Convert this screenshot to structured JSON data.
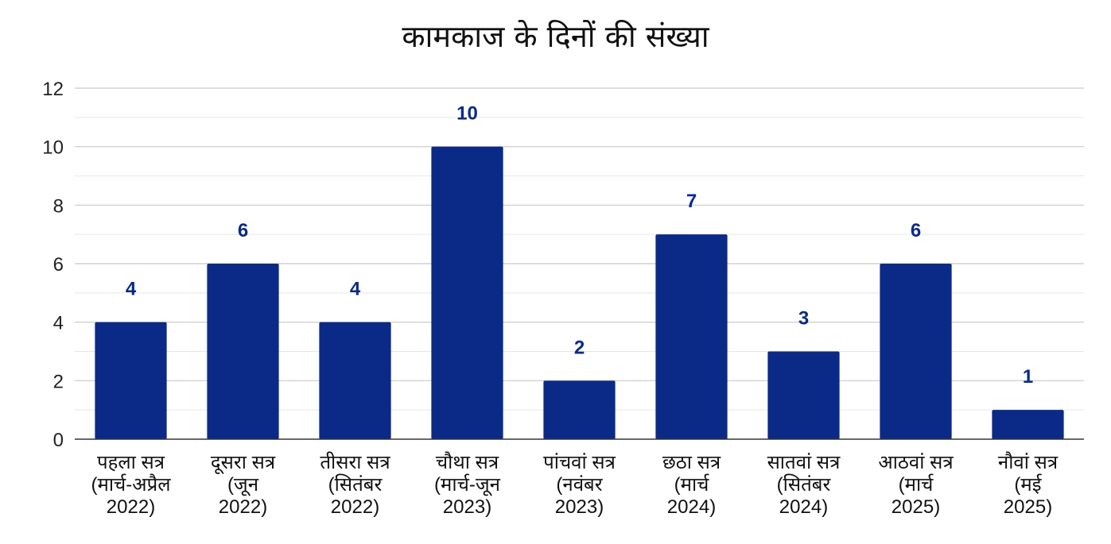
{
  "chart_data": {
    "type": "bar",
    "title": "कामकाज के दिनों की संख्या",
    "xlabel": "",
    "ylabel": "",
    "ylim": [
      0,
      12
    ],
    "yticks": [
      0,
      2,
      4,
      6,
      8,
      10,
      12
    ],
    "grid": true,
    "minor_grid": true,
    "legend": "none",
    "bar_color": "#0b2a87",
    "label_color": "#0b2a87",
    "categories": [
      [
        "पहला सत्र",
        "(मार्च-अप्रैल",
        "2022)"
      ],
      [
        "दूसरा सत्र",
        "(जून",
        "2022)"
      ],
      [
        "तीसरा सत्र",
        "(सितंबर",
        "2022)"
      ],
      [
        "चौथा सत्र",
        "(मार्च-जून",
        "2023)"
      ],
      [
        "पांचवां सत्र",
        "(नवंबर",
        "2023)"
      ],
      [
        "छठा सत्र",
        "(मार्च",
        "2024)"
      ],
      [
        "सातवां सत्र",
        "(सितंबर",
        "2024)"
      ],
      [
        "आठवां सत्र",
        "(मार्च",
        "2025)"
      ],
      [
        "नौवां सत्र",
        "(मई",
        "2025)"
      ]
    ],
    "values": [
      4,
      6,
      4,
      10,
      2,
      7,
      3,
      6,
      1
    ]
  }
}
